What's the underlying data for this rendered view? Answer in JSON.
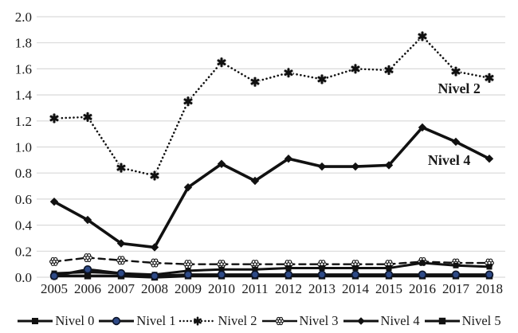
{
  "chart_data": {
    "type": "line",
    "title": "",
    "xlabel": "",
    "ylabel": "",
    "categories": [
      "2005",
      "2006",
      "2007",
      "2008",
      "2009",
      "2010",
      "2011",
      "2012",
      "2013",
      "2014",
      "2015",
      "2016",
      "2017",
      "2018"
    ],
    "ylim": [
      0.0,
      2.0
    ],
    "y_tick_step": 0.2,
    "y_ticks": [
      "2.0",
      "1.8",
      "1.6",
      "1.4",
      "1.2",
      "1.0",
      "0.8",
      "0.6",
      "0.4",
      "0.2",
      "0.0"
    ],
    "grid": "horizontal",
    "gridline_color": "#d9d9d9",
    "line_color": "#111111",
    "legend_position": "bottom",
    "series": [
      {
        "name": "Nivel 0",
        "marker": "square",
        "line": "solid",
        "values": [
          0.03,
          0.04,
          0.03,
          0.02,
          0.05,
          0.06,
          0.06,
          0.07,
          0.07,
          0.07,
          0.07,
          0.11,
          0.09,
          0.08
        ]
      },
      {
        "name": "Nivel 1",
        "marker": "circle",
        "line": "solid",
        "marker_fill": "#2e4a87",
        "values": [
          0.01,
          0.06,
          0.03,
          0.01,
          0.02,
          0.02,
          0.02,
          0.02,
          0.02,
          0.02,
          0.02,
          0.02,
          0.02,
          0.02
        ]
      },
      {
        "name": "Nivel 2",
        "marker": "star",
        "line": "dotted",
        "values": [
          1.22,
          1.23,
          0.84,
          0.78,
          1.35,
          1.65,
          1.5,
          1.57,
          1.52,
          1.6,
          1.59,
          1.85,
          1.58,
          1.53
        ]
      },
      {
        "name": "Nivel 3",
        "marker": "open-star",
        "line": "dashed",
        "values": [
          0.12,
          0.15,
          0.13,
          0.11,
          0.1,
          0.1,
          0.1,
          0.1,
          0.1,
          0.1,
          0.1,
          0.12,
          0.11,
          0.11
        ]
      },
      {
        "name": "Nivel 4",
        "marker": "diamond",
        "line": "solid",
        "values": [
          0.58,
          0.44,
          0.26,
          0.23,
          0.69,
          0.87,
          0.74,
          0.91,
          0.85,
          0.85,
          0.86,
          1.15,
          1.04,
          0.91
        ]
      },
      {
        "name": "Nivel 5",
        "marker": "square-large",
        "line": "solid",
        "values": [
          0.01,
          0.01,
          0.01,
          0.0,
          0.01,
          0.01,
          0.01,
          0.01,
          0.01,
          0.01,
          0.01,
          0.01,
          0.01,
          0.01
        ]
      }
    ],
    "annotations": [
      {
        "text": "Nivel 2",
        "x_index": 12.1,
        "value": 1.45
      },
      {
        "text": "Nivel 4",
        "x_index": 11.8,
        "value": 0.9
      }
    ]
  }
}
